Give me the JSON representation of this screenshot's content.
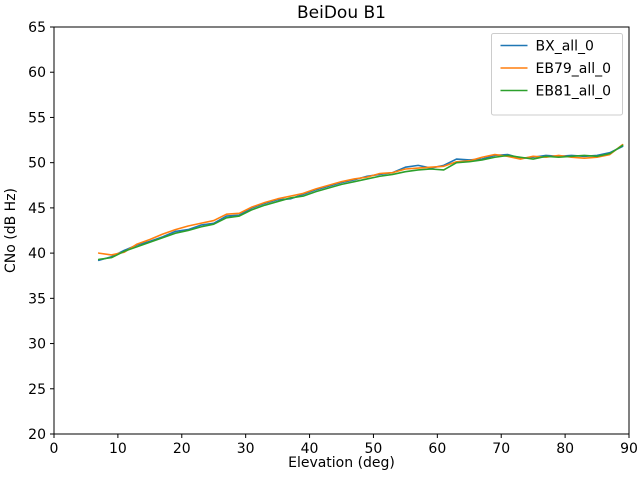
{
  "chart_data": {
    "type": "line",
    "title": "BeiDou B1",
    "xlabel": "Elevation (deg)",
    "ylabel": "CNo (dB Hz)",
    "xlim": [
      0,
      90
    ],
    "ylim": [
      20,
      65
    ],
    "xticks": [
      0,
      10,
      20,
      30,
      40,
      50,
      60,
      70,
      80,
      90
    ],
    "yticks": [
      20,
      25,
      30,
      35,
      40,
      45,
      50,
      55,
      60,
      65
    ],
    "grid": false,
    "legend_position": "upper right",
    "x": [
      7,
      9,
      11,
      13,
      15,
      17,
      19,
      21,
      23,
      25,
      27,
      29,
      31,
      33,
      35,
      37,
      39,
      41,
      43,
      45,
      47,
      49,
      51,
      53,
      55,
      57,
      59,
      61,
      63,
      65,
      67,
      69,
      71,
      73,
      75,
      77,
      79,
      81,
      83,
      85,
      87,
      89
    ],
    "series": [
      {
        "name": "BX_all_0",
        "color": "#1f77b4",
        "values": [
          39.2,
          39.6,
          40.3,
          40.9,
          41.3,
          41.8,
          42.4,
          42.6,
          43.1,
          43.3,
          44.1,
          44.2,
          45.0,
          45.5,
          45.9,
          46.0,
          46.5,
          47.0,
          47.4,
          47.8,
          48.1,
          48.5,
          48.7,
          48.9,
          49.5,
          49.7,
          49.4,
          49.7,
          50.4,
          50.3,
          50.4,
          50.8,
          50.9,
          50.5,
          50.6,
          50.8,
          50.7,
          50.8,
          50.7,
          50.8,
          51.1,
          51.8
        ]
      },
      {
        "name": "EB79_all_0",
        "color": "#ff7f0e",
        "values": [
          40.0,
          39.8,
          40.1,
          41.0,
          41.5,
          42.1,
          42.6,
          43.0,
          43.3,
          43.6,
          44.3,
          44.4,
          45.1,
          45.6,
          46.0,
          46.3,
          46.6,
          47.1,
          47.5,
          47.9,
          48.2,
          48.4,
          48.8,
          48.9,
          49.3,
          49.4,
          49.5,
          49.6,
          50.1,
          50.2,
          50.6,
          50.9,
          50.7,
          50.4,
          50.7,
          50.6,
          50.8,
          50.6,
          50.5,
          50.6,
          50.9,
          52.0
        ]
      },
      {
        "name": "EB81_all_0",
        "color": "#2ca02c",
        "values": [
          39.3,
          39.5,
          40.2,
          40.7,
          41.2,
          41.7,
          42.2,
          42.5,
          42.9,
          43.2,
          43.9,
          44.1,
          44.8,
          45.3,
          45.7,
          46.1,
          46.3,
          46.8,
          47.2,
          47.6,
          47.9,
          48.2,
          48.5,
          48.7,
          49.0,
          49.2,
          49.3,
          49.2,
          50.0,
          50.1,
          50.3,
          50.6,
          50.8,
          50.6,
          50.4,
          50.7,
          50.6,
          50.7,
          50.8,
          50.7,
          51.0,
          51.9
        ]
      }
    ]
  },
  "style": {
    "axis_color": "#000000",
    "legend_edge_color": "#cccccc",
    "legend_face_color": "#ffffff"
  }
}
